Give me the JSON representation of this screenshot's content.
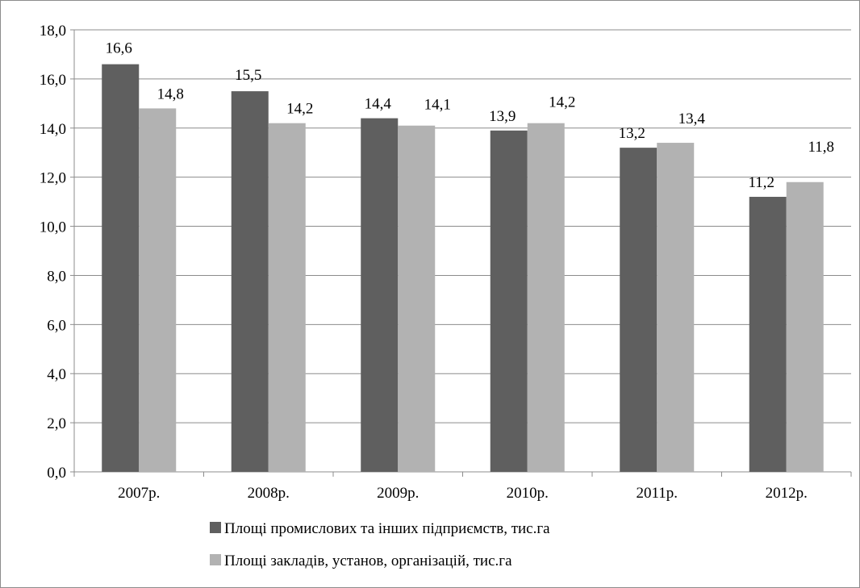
{
  "chart_data": {
    "type": "bar",
    "categories": [
      "2007р.",
      "2008р.",
      "2009р.",
      "2010р.",
      "2011р.",
      "2012р."
    ],
    "series": [
      {
        "name": "Площі промислових та інших підприємств, тис.га",
        "values": [
          16.6,
          15.5,
          14.4,
          13.9,
          13.2,
          11.2
        ],
        "labels": [
          "16,6",
          "15,5",
          "14,4",
          "13,9",
          "13,2",
          "11,2"
        ],
        "color": "#5f5f5f"
      },
      {
        "name": "Площі закладів, установ, організацій, тис.га",
        "values": [
          14.8,
          14.2,
          14.1,
          14.2,
          13.4,
          11.8
        ],
        "labels": [
          "14,8",
          "14,2",
          "14,1",
          "14,2",
          "13,4",
          "11,8"
        ],
        "color": "#b2b2b2"
      }
    ],
    "ylim": [
      0,
      18
    ],
    "yticks": [
      "0,0",
      "2,0",
      "4,0",
      "6,0",
      "8,0",
      "10,0",
      "12,0",
      "14,0",
      "16,0",
      "18,0"
    ],
    "grid": true,
    "legend_position": "bottom",
    "title": "",
    "xlabel": "",
    "ylabel": ""
  }
}
